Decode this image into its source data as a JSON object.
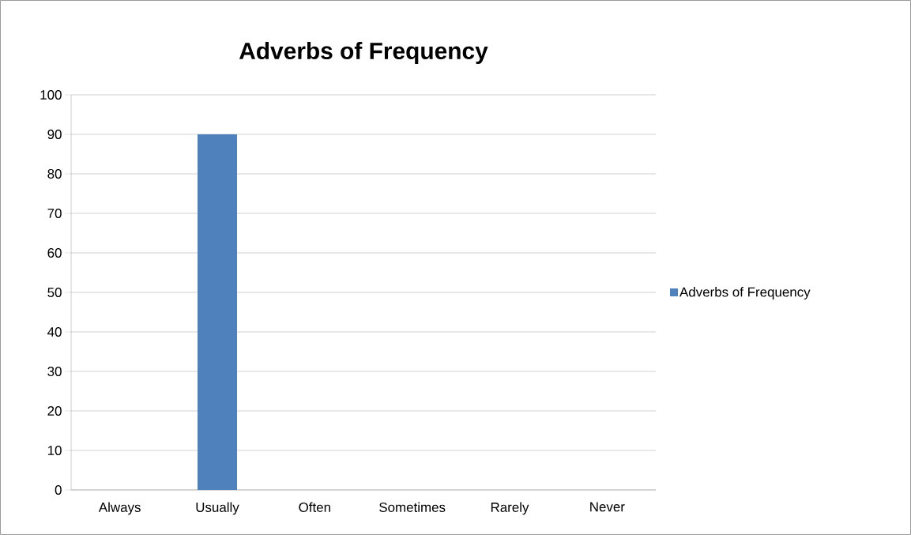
{
  "chart_data": {
    "type": "bar",
    "title": "Adverbs of Frequency",
    "categories": [
      "Always",
      "Usually",
      "Often",
      "Sometimes",
      "Rarely",
      "Never"
    ],
    "series": [
      {
        "name": "Adverbs of Frequency",
        "color": "#4f81bd",
        "values": [
          null,
          90,
          null,
          null,
          null,
          null
        ]
      }
    ],
    "ylim": [
      0,
      100
    ],
    "yticks": [
      0,
      10,
      20,
      30,
      40,
      50,
      60,
      70,
      80,
      90,
      100
    ],
    "grid": "y",
    "legend": "right"
  }
}
